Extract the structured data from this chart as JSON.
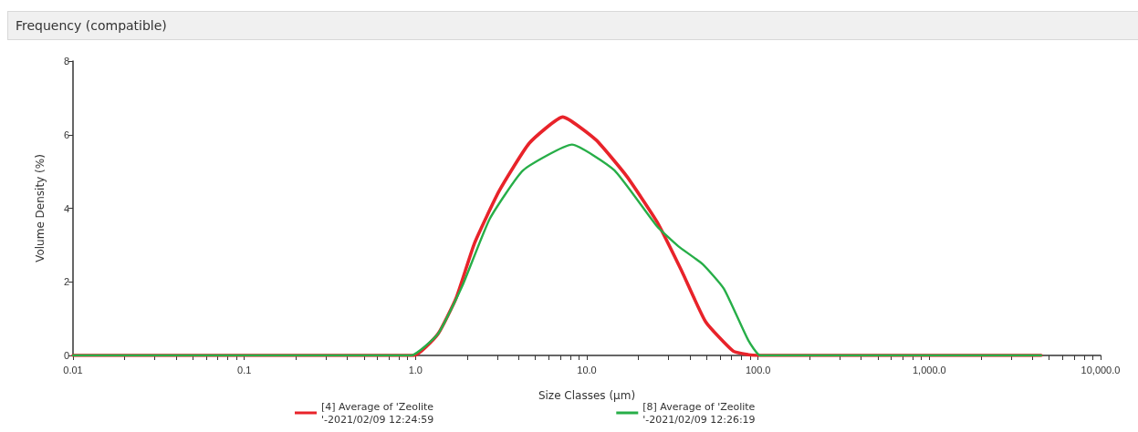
{
  "chart_data": {
    "type": "line",
    "title": "Frequency (compatible)",
    "xlabel": "Size Classes (µm)",
    "ylabel": "Volume Density (%)",
    "log": "x",
    "xlim": [
      0.01,
      10000
    ],
    "ylim": [
      0,
      8
    ],
    "yticks": [
      0,
      2,
      4,
      6,
      8
    ],
    "xticks": [
      {
        "value": 0.01,
        "label": "0.01"
      },
      {
        "value": 0.02,
        "label": null
      },
      {
        "value": 0.03,
        "label": null
      },
      {
        "value": 0.04,
        "label": null
      },
      {
        "value": 0.05,
        "label": null
      },
      {
        "value": 0.06,
        "label": null
      },
      {
        "value": 0.07,
        "label": null
      },
      {
        "value": 0.08,
        "label": null
      },
      {
        "value": 0.09,
        "label": null
      },
      {
        "value": 0.1,
        "label": "0.1"
      },
      {
        "value": 0.2,
        "label": null
      },
      {
        "value": 0.3,
        "label": null
      },
      {
        "value": 0.4,
        "label": null
      },
      {
        "value": 0.5,
        "label": null
      },
      {
        "value": 0.6,
        "label": null
      },
      {
        "value": 0.7,
        "label": null
      },
      {
        "value": 0.8,
        "label": null
      },
      {
        "value": 0.9,
        "label": null
      },
      {
        "value": 1,
        "label": "1.0"
      },
      {
        "value": 2,
        "label": null
      },
      {
        "value": 3,
        "label": null
      },
      {
        "value": 4,
        "label": null
      },
      {
        "value": 5,
        "label": null
      },
      {
        "value": 6,
        "label": null
      },
      {
        "value": 7,
        "label": null
      },
      {
        "value": 8,
        "label": null
      },
      {
        "value": 9,
        "label": null
      },
      {
        "value": 10,
        "label": "10.0"
      },
      {
        "value": 20,
        "label": null
      },
      {
        "value": 30,
        "label": null
      },
      {
        "value": 40,
        "label": null
      },
      {
        "value": 50,
        "label": null
      },
      {
        "value": 60,
        "label": null
      },
      {
        "value": 70,
        "label": null
      },
      {
        "value": 80,
        "label": null
      },
      {
        "value": 90,
        "label": null
      },
      {
        "value": 100,
        "label": "100.0"
      },
      {
        "value": 200,
        "label": null
      },
      {
        "value": 300,
        "label": null
      },
      {
        "value": 400,
        "label": null
      },
      {
        "value": 500,
        "label": null
      },
      {
        "value": 600,
        "label": null
      },
      {
        "value": 700,
        "label": null
      },
      {
        "value": 800,
        "label": null
      },
      {
        "value": 900,
        "label": null
      },
      {
        "value": 1000,
        "label": "1,000.0"
      },
      {
        "value": 2000,
        "label": null
      },
      {
        "value": 3000,
        "label": null
      },
      {
        "value": 4000,
        "label": null
      },
      {
        "value": 5000,
        "label": null
      },
      {
        "value": 6000,
        "label": null
      },
      {
        "value": 7000,
        "label": null
      },
      {
        "value": 8000,
        "label": null
      },
      {
        "value": 9000,
        "label": null
      },
      {
        "value": 10000,
        "label": "10,000.0"
      }
    ],
    "grid": false,
    "legend": "bottom",
    "marker": "none",
    "line_style": "solid",
    "series": [
      {
        "name": "[4] Average of 'Zeolite\n'-2021/02/09 12:24:59",
        "color": "#e8232a",
        "x": [
          0.01,
          0.1,
          0.98,
          1.35,
          1.73,
          2.21,
          3.07,
          4.62,
          7.24,
          11.3,
          17.1,
          25.7,
          35.7,
          49.5,
          71.5,
          87.7,
          100,
          1000,
          4500
        ],
        "values": [
          0,
          0,
          0,
          0.58,
          1.57,
          3.05,
          4.46,
          5.77,
          6.48,
          5.86,
          4.87,
          3.63,
          2.31,
          0.91,
          0.12,
          0.02,
          0,
          0,
          0
        ]
      },
      {
        "name": "[8] Average of 'Zeolite\n'-2021/02/09 12:26:19",
        "color": "#27ae48",
        "x": [
          0.01,
          0.1,
          0.94,
          1.35,
          1.88,
          2.71,
          4.25,
          8.2,
          14.5,
          25.7,
          34.2,
          47.5,
          63.2,
          87.7,
          103,
          1000,
          4500
        ],
        "values": [
          0,
          0,
          0,
          0.58,
          1.9,
          3.71,
          5.03,
          5.73,
          5.03,
          3.51,
          2.97,
          2.48,
          1.81,
          0.41,
          0,
          0,
          0
        ]
      }
    ]
  }
}
